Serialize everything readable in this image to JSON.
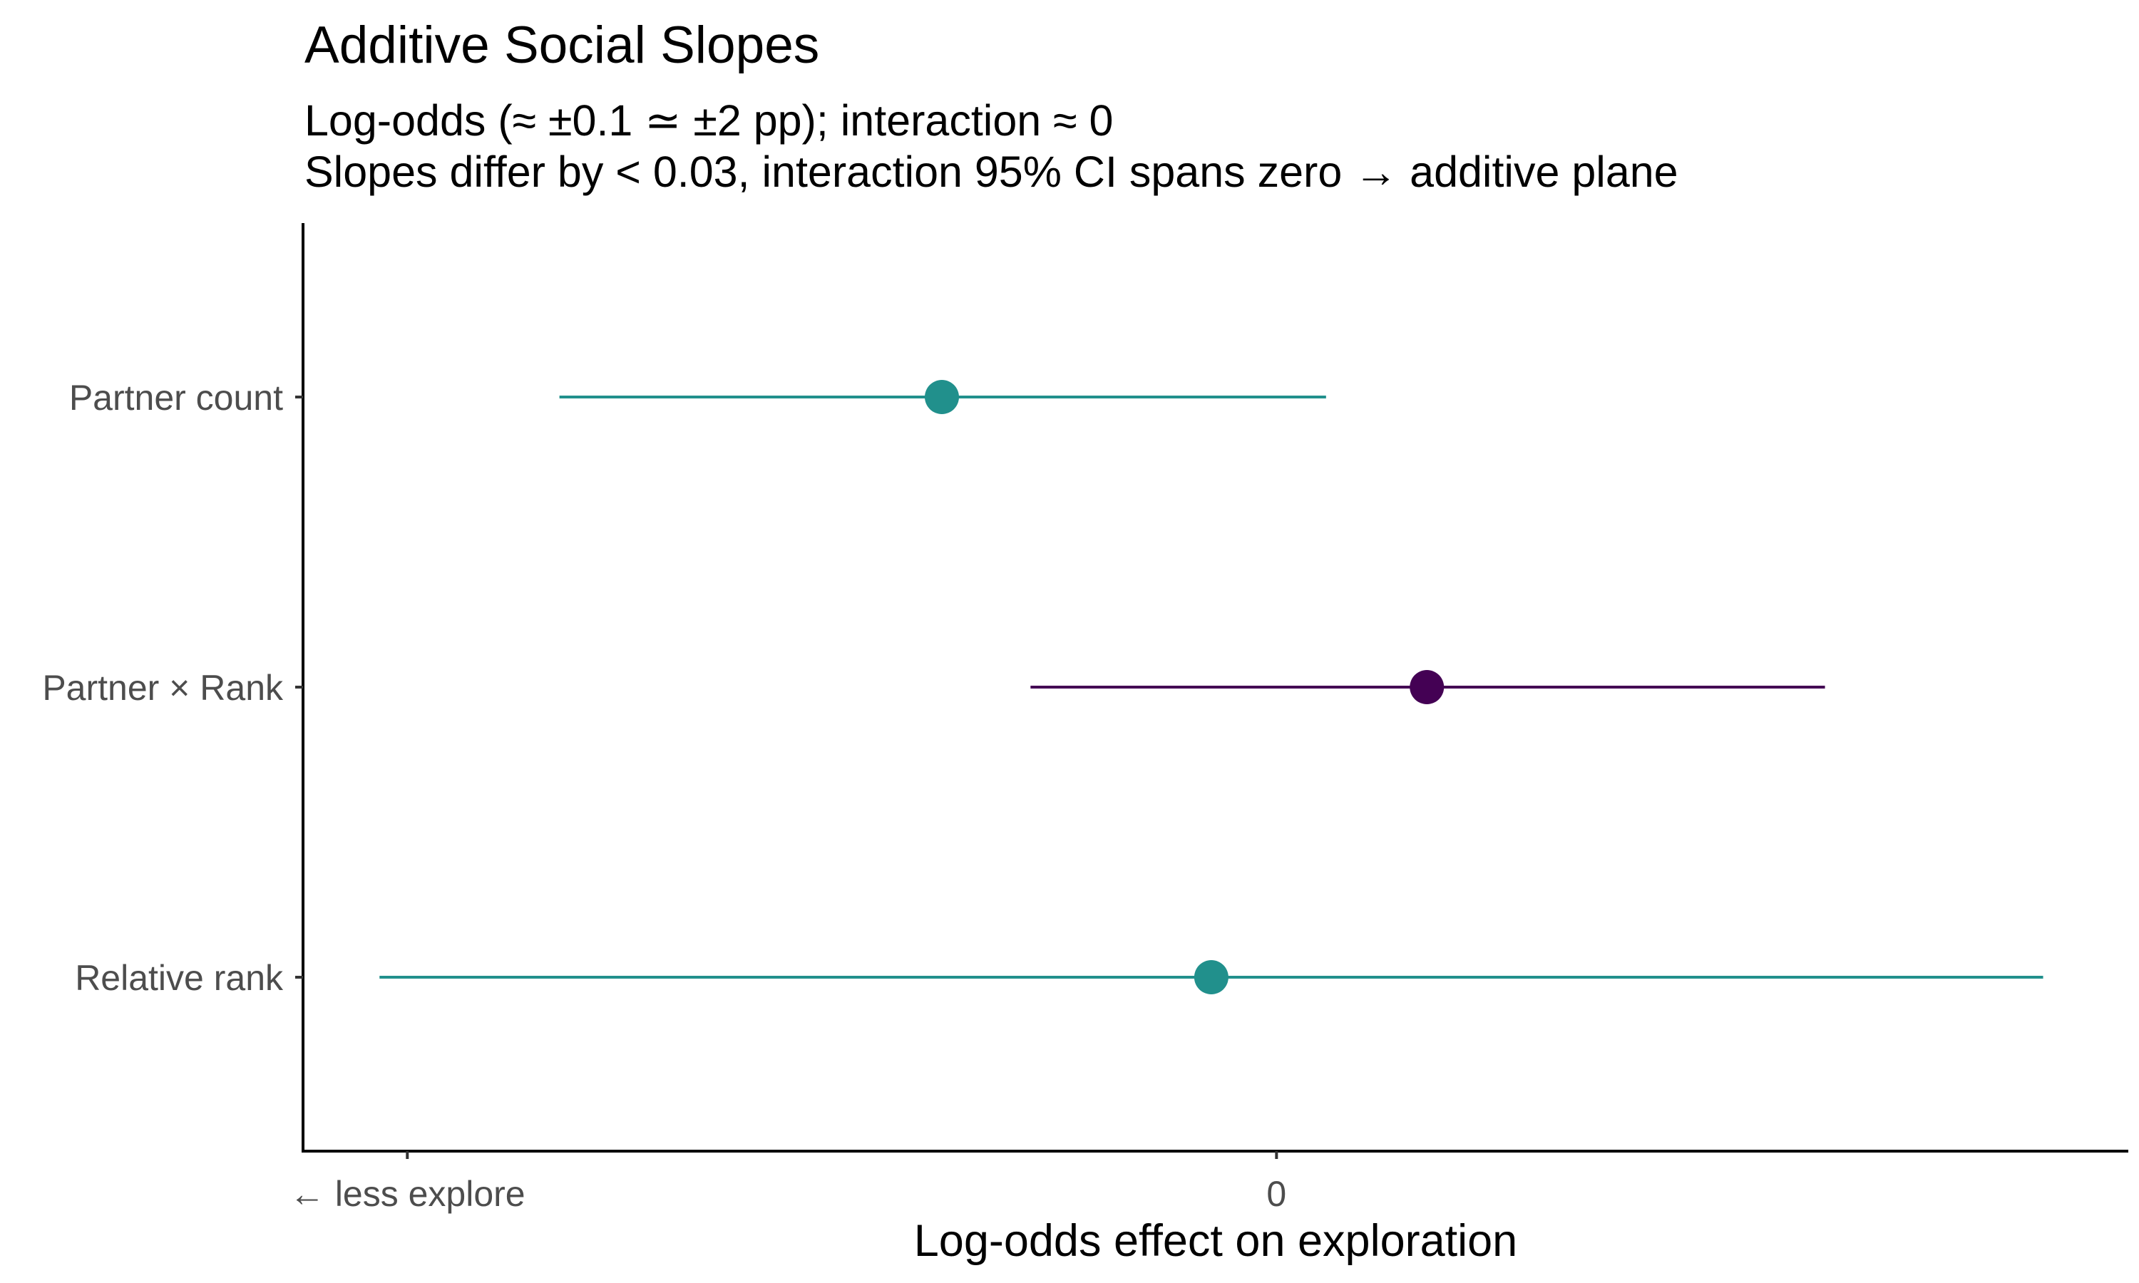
{
  "chart_data": {
    "type": "forest",
    "title": "Additive Social Slopes",
    "subtitle_lines": [
      "Log-odds (≈ ±0.1 ≃ ±2 pp); interaction ≈ 0",
      "Slopes differ by < 0.03, interaction 95% CI spans zero → additive plane"
    ],
    "xlabel": "Log-odds effect on exploration",
    "ylabel": "",
    "xlim": [
      -0.112,
      0.098
    ],
    "x_ticks": [
      {
        "value": -0.1,
        "label": "← less explore"
      },
      {
        "value": 0,
        "label": "0"
      }
    ],
    "grid": false,
    "legend": "none",
    "categories": [
      "Partner count",
      "Partner × Rank",
      "Relative rank"
    ],
    "points": [
      {
        "term": "Partner count",
        "estimate": -0.0385,
        "lower": -0.0825,
        "upper": 0.0057,
        "color": "#21908C"
      },
      {
        "term": "Partner × Rank",
        "estimate": 0.0173,
        "lower": -0.0283,
        "upper": 0.0631,
        "color": "#440154"
      },
      {
        "term": "Relative rank",
        "estimate": -0.0075,
        "lower": -0.1032,
        "upper": 0.0882,
        "color": "#21908C"
      }
    ]
  }
}
